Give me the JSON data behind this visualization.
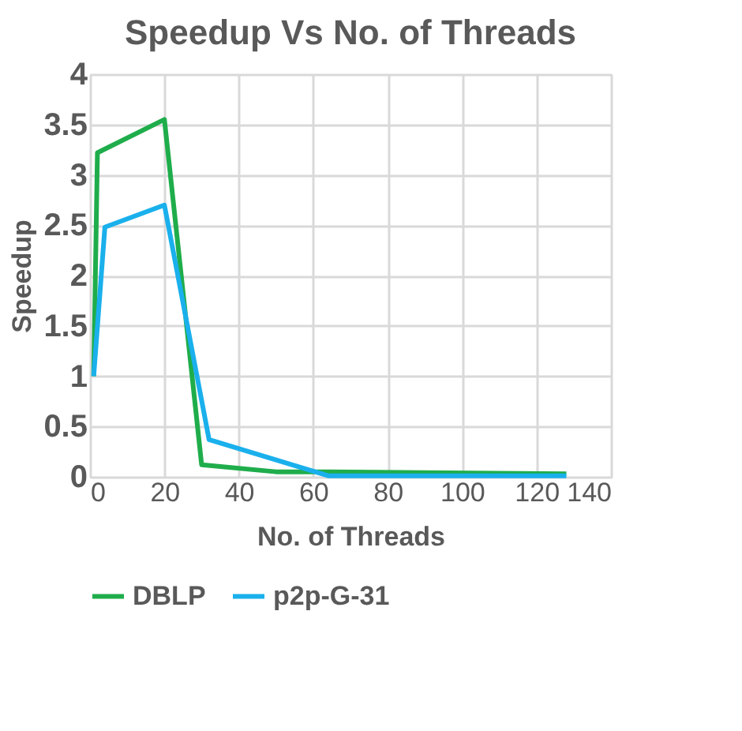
{
  "chart_data": {
    "type": "line",
    "title": "Speedup Vs No. of Threads",
    "xlabel": "No. of Threads",
    "ylabel": "Speedup",
    "xlim": [
      0,
      140
    ],
    "xticks": [
      0,
      20,
      40,
      60,
      80,
      100,
      120,
      140
    ],
    "ylim": [
      0,
      4
    ],
    "yticks": [
      0,
      0.5,
      1,
      1.5,
      2,
      2.5,
      3,
      3.5,
      4
    ],
    "grid": true,
    "legend": "bottom",
    "marker": "none",
    "line_style": "solid",
    "series": [
      {
        "name": "DBLP",
        "color": "#1fad4b",
        "x": [
          1,
          2,
          20,
          30,
          50,
          64,
          128
        ],
        "values": [
          1,
          3.22,
          3.55,
          0.12,
          0.05,
          0.05,
          0.03
        ]
      },
      {
        "name": "p2p-G-31",
        "color": "#1ab0ec",
        "x": [
          1,
          4,
          20,
          32,
          64,
          128
        ],
        "values": [
          1,
          2.48,
          2.7,
          0.37,
          0.01,
          0.01
        ]
      }
    ]
  }
}
